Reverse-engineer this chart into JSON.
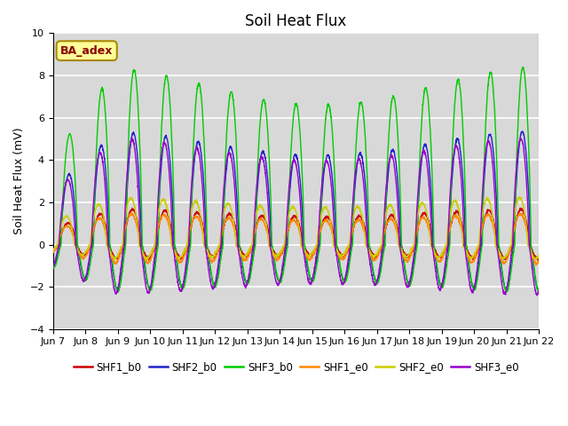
{
  "title": "Soil Heat Flux",
  "ylabel": "Soil Heat Flux (mV)",
  "ylim": [
    -4,
    10
  ],
  "x_tick_labels": [
    "Jun 7",
    "Jun 8",
    "Jun 9",
    "Jun 10",
    "Jun 11",
    "Jun 12",
    "Jun 13",
    "Jun 14",
    "Jun 15",
    "Jun 16",
    "Jun 17",
    "Jun 18",
    "Jun 19",
    "Jun 20",
    "Jun 21",
    "Jun 22"
  ],
  "legend_labels": [
    "SHF1_b0",
    "SHF2_b0",
    "SHF3_b0",
    "SHF1_e0",
    "SHF2_e0",
    "SHF3_e0"
  ],
  "line_colors": [
    "#cc0000",
    "#2222cc",
    "#00cc00",
    "#ff8800",
    "#cccc00",
    "#9900cc"
  ],
  "annotation_text": "BA_adex",
  "annotation_bg": "#ffff99",
  "annotation_border": "#aa8800",
  "annotation_text_color": "#880000",
  "plot_bg": "#d8d8d8",
  "title_fontsize": 12,
  "label_fontsize": 9,
  "tick_fontsize": 8
}
